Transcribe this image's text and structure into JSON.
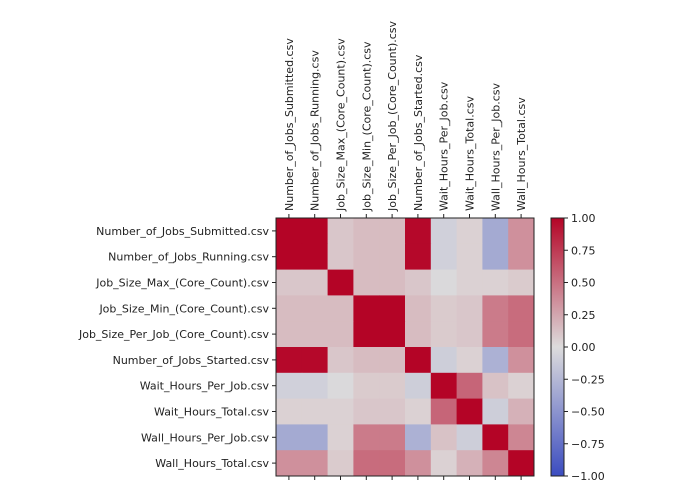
{
  "chart_data": {
    "type": "heatmap",
    "title": "",
    "xlabel": "",
    "ylabel": "",
    "colormap": "coolwarm",
    "colormap_stops": [
      "#3b4cc0",
      "#dddcdc",
      "#b40426"
    ],
    "vmin": -1.0,
    "vmax": 1.0,
    "colorbar_ticks": [
      "1.00",
      "0.75",
      "0.50",
      "0.25",
      "0.00",
      "−0.25",
      "−0.50",
      "−0.75",
      "−1.00"
    ],
    "colorbar_tick_values": [
      1.0,
      0.75,
      0.5,
      0.25,
      0.0,
      -0.25,
      -0.5,
      -0.75,
      -1.0
    ],
    "labels": [
      "Number_of_Jobs_Submitted.csv",
      "Number_of_Jobs_Running.csv",
      "Job_Size_Max_(Core_Count).csv",
      "Job_Size_Min_(Core_Count).csv",
      "Job_Size_Per_Job_(Core_Count).csv",
      "Number_of_Jobs_Started.csv",
      "Wait_Hours_Per_Job.csv",
      "Wait_Hours_Total.csv",
      "Wall_Hours_Per_Job.csv",
      "Wall_Hours_Total.csv"
    ],
    "matrix": [
      [
        1.0,
        1.0,
        0.1,
        0.15,
        0.15,
        0.98,
        -0.08,
        0.05,
        -0.35,
        0.35
      ],
      [
        1.0,
        1.0,
        0.1,
        0.15,
        0.15,
        0.98,
        -0.08,
        0.05,
        -0.35,
        0.35
      ],
      [
        0.1,
        0.1,
        1.0,
        0.15,
        0.15,
        0.1,
        -0.02,
        0.05,
        0.05,
        0.08
      ],
      [
        0.15,
        0.15,
        0.15,
        1.0,
        1.0,
        0.15,
        0.08,
        0.1,
        0.45,
        0.52
      ],
      [
        0.15,
        0.15,
        0.15,
        1.0,
        1.0,
        0.15,
        0.08,
        0.1,
        0.45,
        0.52
      ],
      [
        0.98,
        0.98,
        0.1,
        0.15,
        0.15,
        1.0,
        -0.1,
        0.05,
        -0.3,
        0.35
      ],
      [
        -0.08,
        -0.08,
        -0.02,
        0.08,
        0.08,
        -0.1,
        1.0,
        0.55,
        0.12,
        0.05
      ],
      [
        0.05,
        0.05,
        0.05,
        0.1,
        0.1,
        0.05,
        0.55,
        1.0,
        -0.1,
        0.2
      ],
      [
        -0.35,
        -0.35,
        0.05,
        0.45,
        0.45,
        -0.3,
        0.12,
        -0.1,
        1.0,
        0.4
      ],
      [
        0.35,
        0.35,
        0.08,
        0.52,
        0.52,
        0.35,
        0.05,
        0.2,
        0.4,
        1.0
      ]
    ]
  }
}
